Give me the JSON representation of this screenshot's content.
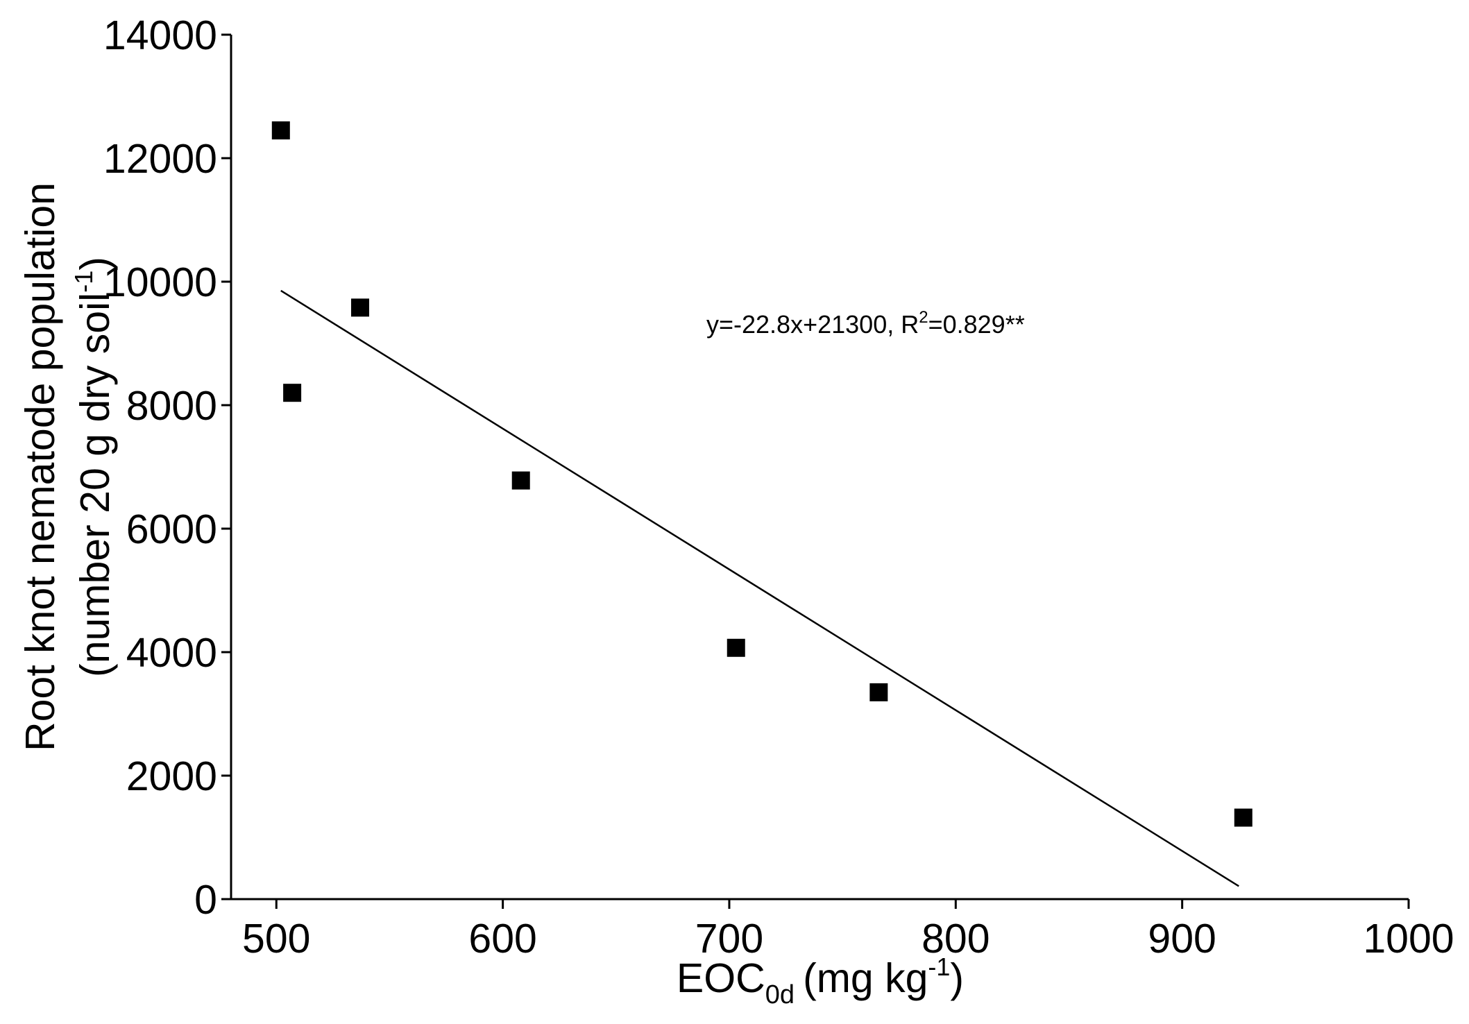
{
  "chart_data": {
    "type": "scatter",
    "title": "",
    "xlabel": {
      "main": "EOC",
      "main_sub": "0d",
      "unit": "(mg kg",
      "unit_sup": "-1",
      "unit_close": ")"
    },
    "ylabel": {
      "line1": "Root knot nematode population",
      "line2": "(number 20 g dry soil",
      "line2_sup": "-1",
      "line2_close": ")"
    },
    "xlim": [
      480,
      1000
    ],
    "ylim": [
      0,
      14000
    ],
    "x_ticks": [
      500,
      600,
      700,
      800,
      900,
      1000
    ],
    "y_ticks": [
      0,
      2000,
      4000,
      6000,
      8000,
      10000,
      12000,
      14000
    ],
    "grid": false,
    "legend": "none",
    "marker": "square",
    "marker_color": "#000000",
    "points": [
      {
        "x": 502,
        "y": 12450
      },
      {
        "x": 507,
        "y": 8200
      },
      {
        "x": 537,
        "y": 9580
      },
      {
        "x": 608,
        "y": 6780
      },
      {
        "x": 703,
        "y": 4070
      },
      {
        "x": 766,
        "y": 3350
      },
      {
        "x": 927,
        "y": 1320
      }
    ],
    "trendline": {
      "slope": -22.8,
      "intercept": 21300,
      "x_range": [
        502,
        925
      ]
    },
    "annotation": {
      "prefix": "y=-22.8x+21300, R",
      "sup": "2",
      "suffix": "=0.829**"
    }
  }
}
